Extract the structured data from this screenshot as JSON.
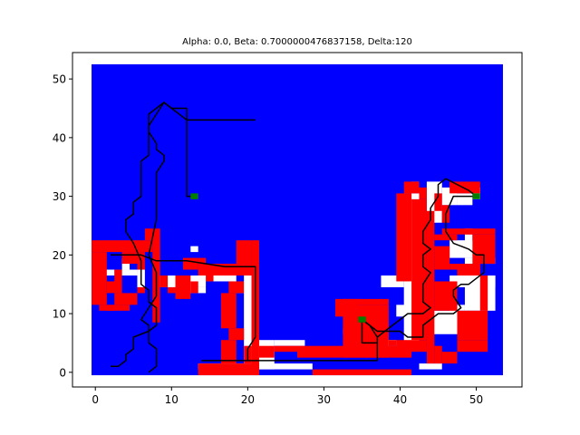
{
  "chart_data": {
    "type": "heatmap",
    "title": "Alpha: 0.0, Beta: 0.7000000476837158, Delta:120",
    "xlabel": "",
    "ylabel": "",
    "xlim": [
      -3,
      56
    ],
    "ylim": [
      -2.5,
      54.5
    ],
    "xticks": [
      0,
      10,
      20,
      30,
      40,
      50
    ],
    "yticks": [
      0,
      10,
      20,
      30,
      40,
      50
    ],
    "xtick_labels": [
      "0",
      "10",
      "20",
      "30",
      "40",
      "50"
    ],
    "ytick_labels": [
      "0",
      "10",
      "20",
      "30",
      "40",
      "50"
    ],
    "grid": false,
    "legend": "none",
    "colors": {
      "background": "#0000ff",
      "wall": "#ff0000",
      "free": "#ffffff",
      "goal": "#008000",
      "path": "#000000"
    },
    "background_region": {
      "x": [
        -0.5,
        53.5
      ],
      "y": [
        -0.5,
        52.5
      ]
    },
    "white_cells": [
      [
        1,
        3,
        17,
        18
      ],
      [
        3,
        6,
        17,
        18
      ],
      [
        6,
        7,
        15,
        18
      ],
      [
        9,
        15,
        15,
        17
      ],
      [
        12,
        15,
        14,
        15
      ],
      [
        13,
        14,
        21,
        22
      ],
      [
        4,
        5,
        18,
        20
      ],
      [
        15,
        19,
        16,
        18
      ],
      [
        20,
        21,
        2,
        18
      ],
      [
        19,
        21,
        14,
        16
      ],
      [
        21,
        24,
        1,
        6
      ],
      [
        24,
        27,
        5,
        6
      ],
      [
        27,
        28,
        5,
        6
      ],
      [
        14,
        29,
        1,
        2
      ],
      [
        36,
        37,
        4,
        8
      ],
      [
        33,
        34,
        7,
        8
      ],
      [
        37,
        40,
        5,
        6
      ],
      [
        40,
        43,
        10,
        12
      ],
      [
        43,
        46,
        1,
        2
      ],
      [
        44,
        48,
        7,
        11
      ],
      [
        47,
        49,
        11,
        12
      ],
      [
        49,
        53,
        11,
        17
      ],
      [
        49,
        53,
        19,
        20
      ],
      [
        47,
        51,
        20,
        23
      ],
      [
        49,
        50,
        22,
        25
      ],
      [
        44,
        46,
        26,
        33
      ],
      [
        46,
        48,
        29,
        32
      ],
      [
        48,
        50,
        29,
        31
      ],
      [
        50,
        51,
        30,
        32
      ],
      [
        41,
        43,
        5,
        31
      ],
      [
        42,
        43,
        32,
        33
      ],
      [
        38,
        41,
        15,
        17
      ],
      [
        47,
        53,
        15,
        17
      ]
    ],
    "red_cells": [
      [
        0,
        8,
        21,
        23
      ],
      [
        0,
        2,
        12,
        21
      ],
      [
        1,
        3,
        11,
        12
      ],
      [
        2,
        5,
        11,
        12
      ],
      [
        3,
        6,
        12,
        14
      ],
      [
        6,
        7,
        14,
        15
      ],
      [
        2,
        4,
        14,
        16
      ],
      [
        3,
        4,
        16,
        18
      ],
      [
        6,
        7,
        18,
        21
      ],
      [
        4,
        6,
        19,
        21
      ],
      [
        7,
        8,
        23,
        25
      ],
      [
        8,
        9,
        9,
        25
      ],
      [
        9,
        10,
        15,
        17
      ],
      [
        11,
        13,
        13,
        17
      ],
      [
        10,
        11,
        14,
        15
      ],
      [
        14,
        21,
        17,
        19
      ],
      [
        12,
        14,
        18,
        20
      ],
      [
        14,
        15,
        19,
        20
      ],
      [
        13,
        14,
        14,
        16
      ],
      [
        15,
        16,
        16,
        17
      ],
      [
        19,
        21,
        19,
        23
      ],
      [
        18,
        19,
        17,
        19
      ],
      [
        21,
        22,
        1,
        23
      ],
      [
        18,
        20,
        14,
        16
      ],
      [
        17,
        19,
        8,
        14
      ],
      [
        18,
        20,
        6,
        8
      ],
      [
        17,
        19,
        2,
        6
      ],
      [
        20,
        21,
        2,
        5
      ],
      [
        14,
        22,
        0,
        2
      ],
      [
        22,
        24,
        3,
        5
      ],
      [
        24,
        27,
        4,
        5
      ],
      [
        27,
        42,
        3,
        5
      ],
      [
        29,
        42,
        0,
        1
      ],
      [
        33,
        39,
        12,
        13
      ],
      [
        33,
        39,
        3,
        12
      ],
      [
        32,
        35,
        10,
        13
      ],
      [
        35,
        37,
        8,
        10
      ],
      [
        37,
        39,
        6,
        8
      ],
      [
        39,
        40,
        5,
        6
      ],
      [
        40,
        44,
        4,
        6
      ],
      [
        42,
        44,
        6,
        30
      ],
      [
        40,
        42,
        16,
        31
      ],
      [
        41,
        43,
        31,
        33
      ],
      [
        43,
        44,
        30,
        32
      ],
      [
        44,
        45,
        2,
        28
      ],
      [
        45,
        46,
        2,
        5
      ],
      [
        46,
        48,
        2,
        4
      ],
      [
        48,
        52,
        4,
        6
      ],
      [
        48,
        52,
        6,
        11
      ],
      [
        51,
        52,
        11,
        17
      ],
      [
        50,
        51,
        17,
        19
      ],
      [
        50,
        53,
        19,
        24
      ],
      [
        49,
        53,
        24,
        25
      ],
      [
        46,
        50,
        24,
        25
      ],
      [
        45,
        48,
        23,
        24
      ],
      [
        45,
        47,
        18,
        22
      ],
      [
        47,
        51,
        18,
        19
      ],
      [
        48,
        51,
        17,
        18
      ],
      [
        45,
        48,
        11,
        16
      ],
      [
        46,
        47,
        26,
        29
      ],
      [
        47,
        51,
        31,
        33
      ],
      [
        45,
        46,
        28,
        31
      ]
    ],
    "goals": [
      [
        13,
        30
      ],
      [
        35,
        9
      ],
      [
        50,
        30
      ]
    ],
    "paths": [
      [
        [
          2,
          20
        ],
        [
          6,
          20
        ],
        [
          8,
          19
        ],
        [
          12,
          19
        ],
        [
          17,
          18
        ],
        [
          21,
          18
        ],
        [
          21,
          6
        ],
        [
          20,
          4
        ],
        [
          20,
          2
        ],
        [
          14,
          2
        ],
        [
          37,
          2
        ],
        [
          37,
          6
        ],
        [
          36,
          8
        ],
        [
          35,
          9
        ]
      ],
      [
        [
          21,
          43
        ],
        [
          12,
          43
        ],
        [
          10,
          45
        ],
        [
          9,
          46
        ],
        [
          9,
          46
        ],
        [
          8,
          45
        ],
        [
          7,
          44
        ],
        [
          7,
          41
        ],
        [
          8,
          39
        ],
        [
          8,
          38
        ],
        [
          9,
          37
        ],
        [
          9,
          36
        ],
        [
          8,
          34
        ],
        [
          8,
          33
        ],
        [
          8,
          26
        ],
        [
          7,
          20
        ],
        [
          8,
          17
        ],
        [
          8,
          13
        ],
        [
          7,
          11
        ],
        [
          6,
          9
        ],
        [
          7,
          8
        ],
        [
          7,
          7
        ],
        [
          5,
          6
        ],
        [
          5,
          4
        ],
        [
          4,
          3
        ],
        [
          4,
          2
        ],
        [
          3,
          1
        ],
        [
          3,
          1
        ],
        [
          2,
          1
        ]
      ],
      [
        [
          13,
          30
        ],
        [
          12,
          30
        ],
        [
          12,
          44
        ],
        [
          12,
          45
        ],
        [
          10,
          45
        ],
        [
          9,
          46
        ],
        [
          8,
          44
        ],
        [
          7,
          42
        ],
        [
          7,
          39
        ],
        [
          7,
          37
        ],
        [
          6,
          36
        ],
        [
          6,
          35
        ],
        [
          6,
          32
        ],
        [
          6,
          30
        ],
        [
          5,
          29
        ],
        [
          5,
          27
        ],
        [
          4,
          26
        ],
        [
          4,
          25
        ],
        [
          4,
          24
        ],
        [
          5,
          22
        ],
        [
          6,
          19
        ],
        [
          6,
          16
        ],
        [
          6,
          15
        ],
        [
          7,
          14
        ],
        [
          7,
          12
        ],
        [
          8,
          11
        ],
        [
          8,
          8
        ],
        [
          7,
          7
        ],
        [
          7,
          5
        ],
        [
          8,
          4
        ],
        [
          8,
          2
        ],
        [
          8,
          1
        ],
        [
          7,
          0
        ],
        [
          7,
          0
        ]
      ],
      [
        [
          50,
          30
        ],
        [
          47,
          30
        ],
        [
          46,
          27
        ],
        [
          46,
          24
        ],
        [
          47,
          22
        ],
        [
          49,
          21
        ],
        [
          50,
          20
        ],
        [
          51,
          20
        ],
        [
          51,
          17
        ],
        [
          50,
          16
        ],
        [
          49,
          15
        ],
        [
          48,
          15
        ],
        [
          47,
          14
        ],
        [
          47,
          13
        ],
        [
          48,
          11
        ],
        [
          47,
          10
        ],
        [
          45,
          10
        ],
        [
          44,
          9
        ],
        [
          43,
          8
        ],
        [
          43,
          6
        ],
        [
          41,
          6
        ],
        [
          40,
          7
        ],
        [
          38,
          7
        ],
        [
          37,
          6
        ],
        [
          37,
          5
        ],
        [
          35,
          5
        ],
        [
          35,
          8
        ],
        [
          35,
          9
        ]
      ],
      [
        [
          50,
          30
        ],
        [
          49,
          31
        ],
        [
          46,
          33
        ],
        [
          45,
          32
        ],
        [
          45,
          30
        ],
        [
          44,
          28
        ],
        [
          44,
          26
        ],
        [
          43,
          24
        ],
        [
          43,
          22
        ],
        [
          44,
          21
        ],
        [
          43,
          20
        ],
        [
          43,
          18
        ],
        [
          44,
          17
        ],
        [
          43,
          15
        ],
        [
          43,
          14
        ],
        [
          43,
          12
        ],
        [
          44,
          11
        ],
        [
          43,
          10
        ],
        [
          41,
          10
        ],
        [
          40,
          9
        ],
        [
          39,
          8
        ],
        [
          38,
          7
        ],
        [
          37,
          7
        ],
        [
          36,
          8
        ],
        [
          35,
          9
        ]
      ]
    ]
  }
}
